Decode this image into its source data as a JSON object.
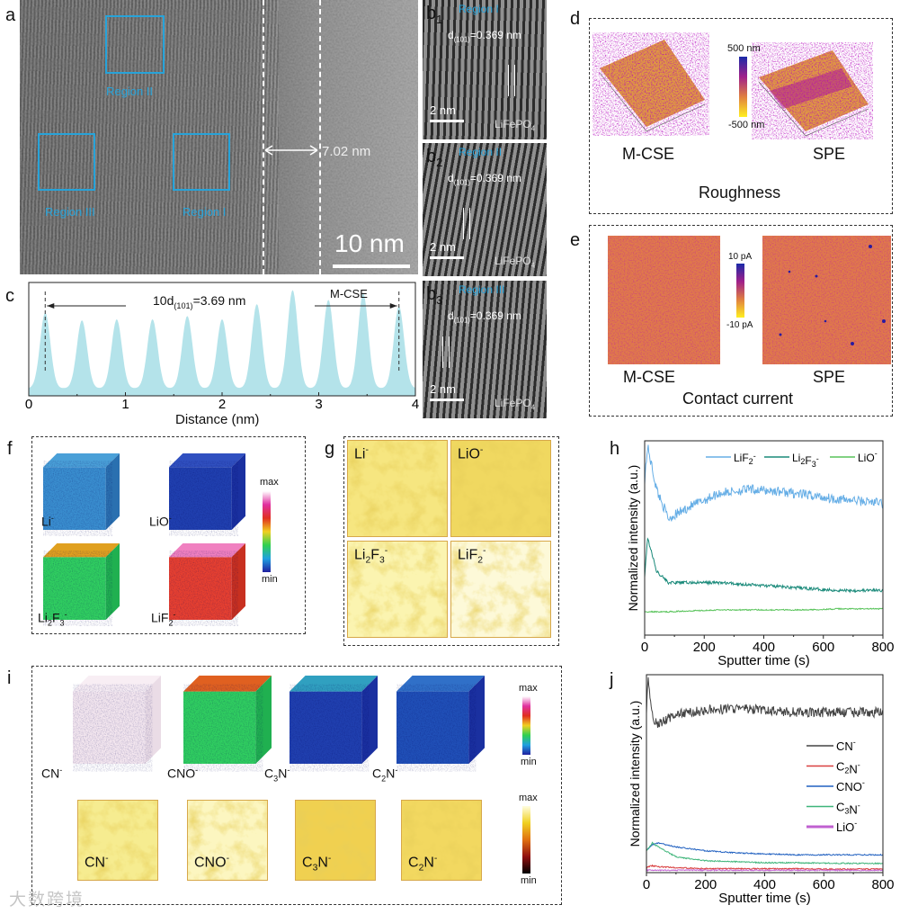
{
  "panels": {
    "a": {
      "label": "a",
      "regions": [
        "Region II",
        "Region III",
        "Region I"
      ],
      "width_label": "7.02 nm",
      "scalebar": "10 nm"
    },
    "b1": {
      "label": "b",
      "sub": "1",
      "region": "Region I",
      "d_prefix": "d",
      "d_sub": "(101)",
      "d_value": "=0.369 nm",
      "scalebar": "2 nm",
      "material": "LiFePO",
      "material_sub": "4"
    },
    "b2": {
      "label": "b",
      "sub": "2",
      "region": "Region II",
      "d_prefix": "d",
      "d_sub": "(101)",
      "d_value": "=0.369 nm",
      "scalebar": "2 nm",
      "material": "LiFePO",
      "material_sub": "4"
    },
    "b3": {
      "label": "b",
      "sub": "3",
      "region": "Region III",
      "d_prefix": "d",
      "d_sub": "(101)",
      "d_value": "=0.369 nm",
      "scalebar": "2 nm",
      "material": "LiFePO",
      "material_sub": "4"
    },
    "d": {
      "label": "d",
      "left": "M-CSE",
      "right": "SPE",
      "title": "Roughness",
      "cbar_max": "500 nm",
      "cbar_min": "-500 nm"
    },
    "e": {
      "label": "e",
      "left": "M-CSE",
      "right": "SPE",
      "title": "Contact current",
      "cbar_max": "10 pA",
      "cbar_min": "-10 pA"
    },
    "f": {
      "label": "f",
      "cbar_max": "max",
      "cbar_min": "min",
      "cubes": [
        [
          [
            "Li",
            ""
          ],
          [
            "-",
            "sup"
          ]
        ],
        [
          [
            "LiO",
            ""
          ],
          [
            "-",
            "sup"
          ]
        ],
        [
          [
            "Li",
            ""
          ],
          [
            "2",
            "sub"
          ],
          [
            "F",
            ""
          ],
          [
            "3",
            "sub"
          ],
          [
            "-",
            "sup"
          ]
        ],
        [
          [
            "LiF",
            ""
          ],
          [
            "2",
            "sub"
          ],
          [
            "-",
            "sup"
          ]
        ]
      ]
    },
    "g": {
      "label": "g",
      "tiles": [
        [
          [
            "Li",
            ""
          ],
          [
            "-",
            "sup"
          ]
        ],
        [
          [
            "LiO",
            ""
          ],
          [
            "-",
            "sup"
          ]
        ],
        [
          [
            "Li",
            ""
          ],
          [
            "2",
            "sub"
          ],
          [
            "F",
            ""
          ],
          [
            "3",
            "sub"
          ],
          [
            "-",
            "sup"
          ]
        ],
        [
          [
            "LiF",
            ""
          ],
          [
            "2",
            "sub"
          ],
          [
            "-",
            "sup"
          ]
        ]
      ]
    },
    "i": {
      "label": "i",
      "cbar_max": "max",
      "cbar_min": "min",
      "cbar2_max": "max",
      "cbar2_min": "min",
      "cubes": [
        [
          [
            "CN",
            ""
          ],
          [
            "-",
            "sup"
          ]
        ],
        [
          [
            "CNO",
            ""
          ],
          [
            "-",
            "sup"
          ]
        ],
        [
          [
            "C",
            ""
          ],
          [
            "3",
            "sub"
          ],
          [
            "N",
            ""
          ],
          [
            "-",
            "sup"
          ]
        ],
        [
          [
            "C",
            ""
          ],
          [
            "2",
            "sub"
          ],
          [
            "N",
            ""
          ],
          [
            "-",
            "sup"
          ]
        ]
      ],
      "tiles": [
        [
          [
            "CN",
            ""
          ],
          [
            "-",
            "sup"
          ]
        ],
        [
          [
            "CNO",
            ""
          ],
          [
            "-",
            "sup"
          ]
        ],
        [
          [
            "C",
            ""
          ],
          [
            "3",
            "sub"
          ],
          [
            "N",
            ""
          ],
          [
            "-",
            "sup"
          ]
        ],
        [
          [
            "C",
            ""
          ],
          [
            "2",
            "sub"
          ],
          [
            "N",
            ""
          ],
          [
            "-",
            "sup"
          ]
        ]
      ]
    },
    "h_label": "h",
    "j_label": "j"
  },
  "watermark": "大数跨境",
  "chart_data": [
    {
      "id": "c",
      "type": "area",
      "title": "10d(101)=3.69 nm",
      "annotation": "M-CSE",
      "title_parts": [
        [
          "10d",
          ""
        ],
        [
          "(101)",
          "sub"
        ],
        [
          "=3.69 nm",
          ""
        ]
      ],
      "xlabel": "Distance (nm)",
      "ylabel": "",
      "xlim": [
        0,
        4
      ],
      "xticks": [
        "0",
        "1",
        "2",
        "3",
        "4"
      ],
      "peaks_x": [
        0.17,
        0.55,
        0.91,
        1.28,
        1.64,
        2.0,
        2.36,
        2.73,
        3.1,
        3.46,
        3.83
      ],
      "peaks_h": [
        0.7,
        0.63,
        0.64,
        0.64,
        0.67,
        0.64,
        0.78,
        0.91,
        0.82,
        0.88,
        0.76
      ],
      "markers_x": [
        0.17,
        3.83
      ],
      "color": "#b4e3ea"
    },
    {
      "id": "h",
      "type": "line",
      "xlabel": "Sputter time (s)",
      "ylabel": "Normalized intensity (a.u.)",
      "xlim": [
        0,
        800
      ],
      "ylim": [
        0,
        1
      ],
      "xticks": [
        "0",
        "200",
        "400",
        "600",
        "800"
      ],
      "legend": "top-right",
      "x": [
        0,
        10,
        40,
        80,
        150,
        250,
        350,
        450,
        550,
        650,
        800
      ],
      "series": [
        {
          "name": [
            [
              "LiF",
              ""
            ],
            [
              "2",
              "sub"
            ],
            [
              "-",
              "sup"
            ]
          ],
          "color": "#66aee6",
          "values": [
            0.8,
            0.97,
            0.75,
            0.6,
            0.66,
            0.73,
            0.75,
            0.74,
            0.72,
            0.7,
            0.68
          ]
        },
        {
          "name": [
            [
              "Li",
              ""
            ],
            [
              "2",
              "sub"
            ],
            [
              "F",
              ""
            ],
            [
              "3",
              "sub"
            ],
            [
              "-",
              "sup"
            ]
          ],
          "color": "#1a8a7a",
          "values": [
            0.3,
            0.5,
            0.33,
            0.27,
            0.27,
            0.27,
            0.26,
            0.25,
            0.24,
            0.23,
            0.23
          ]
        },
        {
          "name": [
            [
              "LiO",
              ""
            ],
            [
              "-",
              "sup"
            ]
          ],
          "color": "#58c35a",
          "values": [
            0.12,
            0.12,
            0.12,
            0.12,
            0.125,
            0.13,
            0.13,
            0.13,
            0.13,
            0.135,
            0.135
          ]
        }
      ]
    },
    {
      "id": "j",
      "type": "line",
      "xlabel": "Sputter time (s)",
      "ylabel": "Normalized intensity (a.u.)",
      "xlim": [
        0,
        800
      ],
      "ylim": [
        0,
        1
      ],
      "xticks": [
        "0",
        "200",
        "400",
        "600",
        "800"
      ],
      "legend": "right",
      "x": [
        0,
        5,
        20,
        40,
        100,
        200,
        300,
        400,
        500,
        600,
        800
      ],
      "series": [
        {
          "name": [
            [
              "CN",
              ""
            ],
            [
              "-",
              "sup"
            ]
          ],
          "color": "#444444",
          "values": [
            0.8,
            1.0,
            0.79,
            0.75,
            0.8,
            0.82,
            0.83,
            0.82,
            0.81,
            0.81,
            0.81
          ]
        },
        {
          "name": [
            [
              "C",
              ""
            ],
            [
              "2",
              "sub"
            ],
            [
              "N",
              ""
            ],
            [
              "-",
              "sup"
            ]
          ],
          "color": "#d94040",
          "values": [
            0.02,
            0.03,
            0.035,
            0.03,
            0.025,
            0.02,
            0.02,
            0.02,
            0.02,
            0.018,
            0.018
          ]
        },
        {
          "name": [
            [
              "CNO",
              ""
            ],
            [
              "-",
              "sup"
            ]
          ],
          "color": "#2060c0",
          "values": [
            0.11,
            0.12,
            0.14,
            0.15,
            0.13,
            0.11,
            0.1,
            0.095,
            0.09,
            0.09,
            0.09
          ]
        },
        {
          "name": [
            [
              "C",
              ""
            ],
            [
              "3",
              "sub"
            ],
            [
              "N",
              ""
            ],
            [
              "-",
              "sup"
            ]
          ],
          "color": "#3fb57a",
          "values": [
            0.11,
            0.12,
            0.15,
            0.13,
            0.08,
            0.06,
            0.055,
            0.05,
            0.05,
            0.048,
            0.046
          ]
        },
        {
          "name": [
            [
              "LiO",
              ""
            ],
            [
              "-",
              "sup"
            ]
          ],
          "color": "#c060d0",
          "values": [
            0.01,
            0.012,
            0.012,
            0.012,
            0.012,
            0.012,
            0.012,
            0.012,
            0.012,
            0.012,
            0.012
          ]
        }
      ]
    }
  ]
}
